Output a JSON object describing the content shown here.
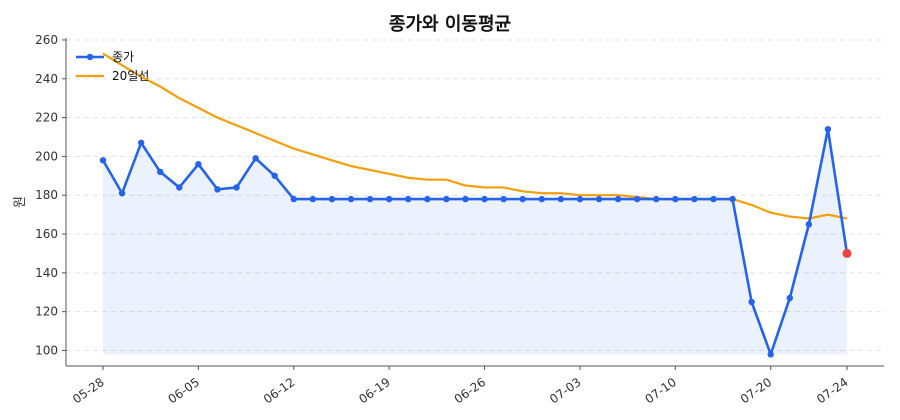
{
  "chart_data": {
    "type": "line",
    "title": "종가와 이동평균",
    "xlabel": "",
    "ylabel": "원",
    "ylim": [
      92,
      261
    ],
    "yticks": [
      100,
      120,
      140,
      160,
      180,
      200,
      220,
      240,
      260
    ],
    "xticks": [
      "05-28",
      "06-05",
      "06-12",
      "06-19",
      "06-26",
      "07-03",
      "07-10",
      "07-20",
      "07-24"
    ],
    "xtick_index": [
      0,
      5,
      10,
      15,
      20,
      25,
      30,
      35,
      39
    ],
    "grid": true,
    "legend": "top-left",
    "series": [
      {
        "name": "종가",
        "color": "#2563eb",
        "markers": true,
        "fill": true,
        "values": [
          198,
          181,
          207,
          192,
          184,
          196,
          183,
          184,
          199,
          190,
          178,
          178,
          178,
          178,
          178,
          178,
          178,
          178,
          178,
          178,
          178,
          178,
          178,
          178,
          178,
          178,
          178,
          178,
          178,
          178,
          178,
          178,
          178,
          178,
          125,
          98,
          127,
          165,
          214,
          150
        ]
      },
      {
        "name": "20일선",
        "color": "#f59e0b",
        "markers": false,
        "fill": false,
        "values": [
          253,
          247,
          241,
          236,
          230,
          225,
          220,
          216,
          212,
          208,
          204,
          201,
          198,
          195,
          193,
          191,
          189,
          188,
          188,
          185,
          184,
          184,
          182,
          181,
          181,
          180,
          180,
          180,
          179,
          178,
          178,
          178,
          178,
          178,
          175,
          171,
          169,
          168,
          170,
          168
        ]
      }
    ],
    "highlight_last_point": {
      "color": "#ef4444"
    }
  }
}
